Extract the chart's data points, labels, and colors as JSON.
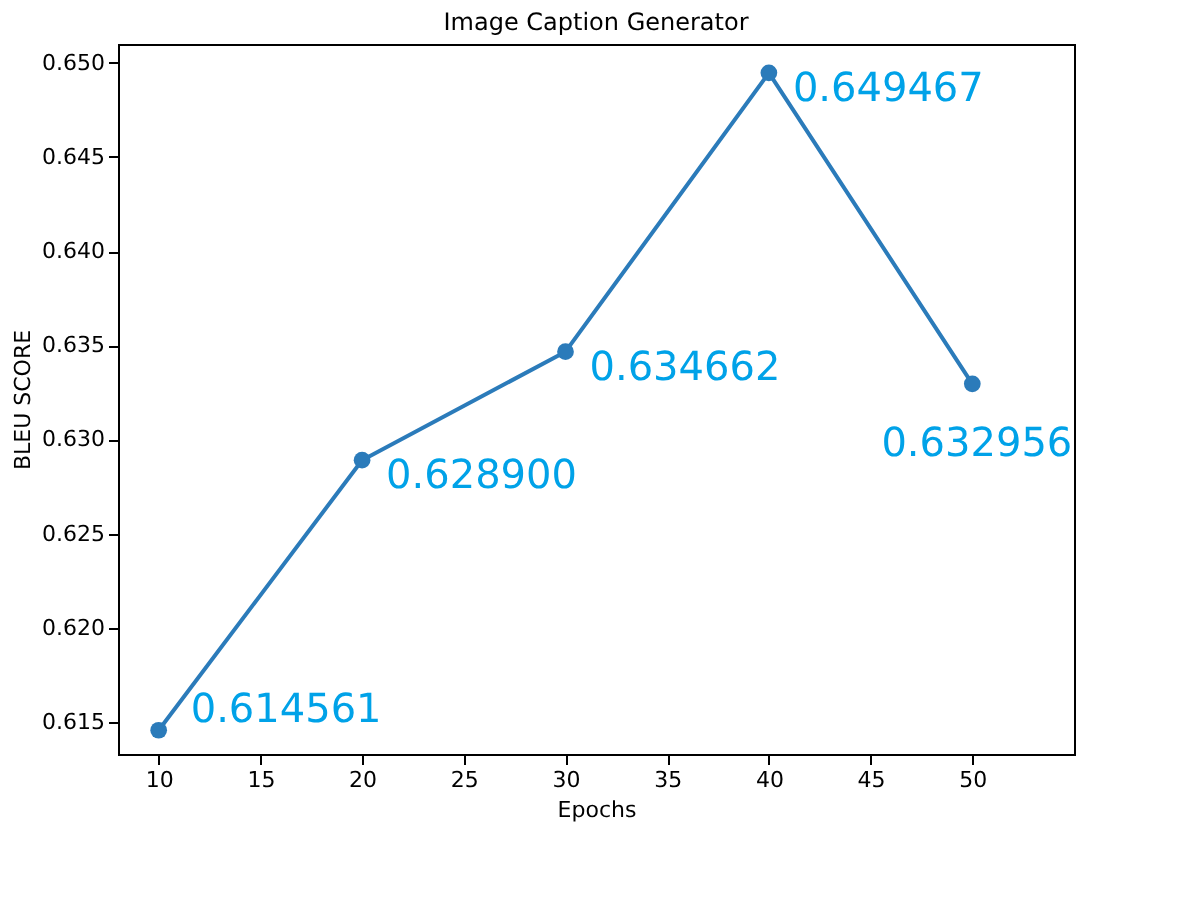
{
  "chart_data": {
    "type": "line",
    "title": "Image Caption Generator",
    "xlabel": "Epochs",
    "ylabel": "BLEU SCORE",
    "x": [
      10,
      20,
      30,
      40,
      50
    ],
    "series": [
      {
        "color": "#2b7bba",
        "values": [
          0.614561,
          0.6289,
          0.634662,
          0.649467,
          0.632956
        ],
        "value_labels": [
          "0.614561",
          "0.628900",
          "0.634662",
          "0.649467",
          "0.632956"
        ]
      }
    ],
    "xlim": [
      8,
      55
    ],
    "xticks": [
      10,
      15,
      20,
      25,
      30,
      35,
      40,
      45,
      50
    ],
    "ylim": [
      0.6133,
      0.651
    ],
    "yticks": [
      {
        "value": 0.615,
        "label": "0.615"
      },
      {
        "value": 0.62,
        "label": "0.620"
      },
      {
        "value": 0.625,
        "label": "0.625"
      },
      {
        "value": 0.63,
        "label": "0.630"
      },
      {
        "value": 0.635,
        "label": "0.635"
      },
      {
        "value": 0.64,
        "label": "0.640"
      },
      {
        "value": 0.645,
        "label": "0.645"
      },
      {
        "value": 0.65,
        "label": "0.650"
      }
    ],
    "marker": "circle",
    "line_style": "solid",
    "grid": false,
    "legend": false
  }
}
